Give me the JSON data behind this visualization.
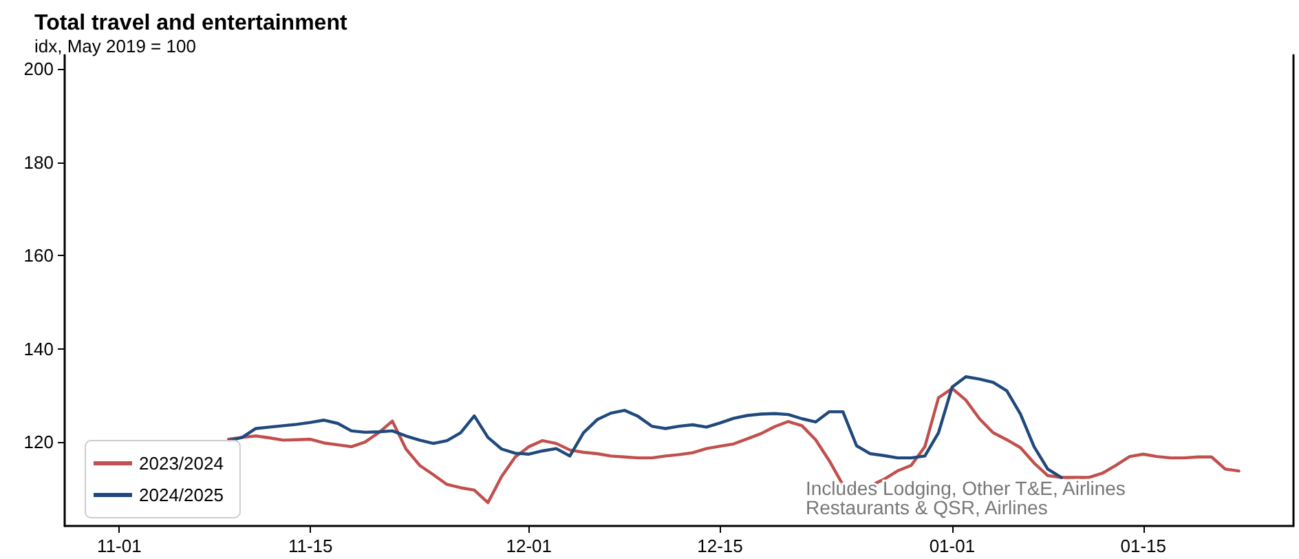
{
  "chart_data": {
    "type": "line",
    "title": "Total travel and entertainment",
    "subtitle": "idx, May 2019 = 100",
    "annotations": [
      "Includes Lodging, Other T&E, Airlines",
      "Restaurants & QSR, Airlines"
    ],
    "x": [
      "2024-11-09",
      "2024-11-10",
      "2024-11-11",
      "2024-11-12",
      "2024-11-13",
      "2024-11-14",
      "2024-11-15",
      "2024-11-16",
      "2024-11-17",
      "2024-11-18",
      "2024-11-19",
      "2024-11-20",
      "2024-11-21",
      "2024-11-22",
      "2024-11-23",
      "2024-11-24",
      "2024-11-25",
      "2024-11-26",
      "2024-11-27",
      "2024-11-28",
      "2024-11-29",
      "2024-11-30",
      "2024-12-01",
      "2024-12-02",
      "2024-12-03",
      "2024-12-04",
      "2024-12-05",
      "2024-12-06",
      "2024-12-07",
      "2024-12-08",
      "2024-12-09",
      "2024-12-10",
      "2024-12-11",
      "2024-12-12",
      "2024-12-13",
      "2024-12-14",
      "2024-12-15",
      "2024-12-16",
      "2024-12-17",
      "2024-12-18",
      "2024-12-19",
      "2024-12-20",
      "2024-12-21",
      "2024-12-22",
      "2024-12-23",
      "2024-12-24",
      "2024-12-25",
      "2024-12-26",
      "2024-12-27",
      "2024-12-28",
      "2024-12-29",
      "2024-12-30",
      "2024-12-31",
      "2025-01-01",
      "2025-01-02",
      "2025-01-03",
      "2025-01-04",
      "2025-01-05",
      "2025-01-06",
      "2025-01-07",
      "2025-01-08",
      "2025-01-09",
      "2025-01-10",
      "2025-01-11",
      "2025-01-12",
      "2025-01-13",
      "2025-01-14",
      "2025-01-15",
      "2025-01-16",
      "2025-01-17",
      "2025-01-18",
      "2025-01-19",
      "2025-01-20",
      "2025-01-21",
      "2025-01-22"
    ],
    "series": [
      {
        "name": "2023/2024",
        "color": "#c0504d",
        "values": [
          120.6,
          121,
          121.3,
          120.9,
          120.4,
          120.5,
          120.6,
          119.8,
          119.4,
          119,
          120,
          122,
          124.5,
          118.5,
          115,
          113,
          110.9,
          110.2,
          109.7,
          107,
          112.6,
          116.8,
          119,
          120.3,
          119.7,
          118.3,
          117.8,
          117.5,
          117,
          116.8,
          116.6,
          116.6,
          117,
          117.3,
          117.7,
          118.6,
          119.1,
          119.6,
          120.7,
          121.8,
          123.3,
          124.4,
          123.5,
          120.5,
          116,
          110.8,
          109.3,
          110.6,
          112,
          113.8,
          115,
          119,
          129.5,
          131.5,
          129,
          125,
          122,
          120.5,
          118.8,
          115.5,
          112.8,
          112.4,
          112.4,
          112.4,
          113.3,
          115,
          116.9,
          117.4,
          116.9,
          116.6,
          116.6,
          116.8,
          116.8,
          114.2,
          113.8
        ]
      },
      {
        "name": "2024/2025",
        "color": "#1f497d",
        "values": [
          120.3,
          121,
          122.9,
          123.2,
          123.5,
          123.8,
          124.2,
          124.7,
          124,
          122.4,
          122.1,
          122.2,
          122.4,
          121.3,
          120.4,
          119.7,
          120.3,
          122,
          125.6,
          121,
          118.5,
          117.6,
          117.4,
          118.1,
          118.6,
          117,
          122,
          124.8,
          126.2,
          126.8,
          125.5,
          123.4,
          122.9,
          123.4,
          123.7,
          123.2,
          124.1,
          125.1,
          125.7,
          126,
          126.1,
          125.9,
          125,
          124.3,
          126.5,
          126.5,
          119.2,
          117.5,
          117.1,
          116.6,
          116.6,
          117,
          122,
          131.8,
          134,
          133.5,
          132.8,
          131,
          126,
          119,
          114.2,
          112.4,
          null,
          null,
          null,
          null,
          null,
          null,
          null,
          null,
          null,
          null,
          null,
          null,
          null
        ]
      }
    ],
    "xlim": [
      "2024-10-28",
      "2025-01-26"
    ],
    "xticks": [
      {
        "value": "2024-11-01",
        "label": "11-01"
      },
      {
        "value": "2024-11-15",
        "label": "11-15"
      },
      {
        "value": "2024-12-01",
        "label": "12-01"
      },
      {
        "value": "2024-12-15",
        "label": "12-15"
      },
      {
        "value": "2025-01-01",
        "label": "01-01"
      },
      {
        "value": "2025-01-15",
        "label": "01-15"
      }
    ],
    "ylim": [
      102,
      203
    ],
    "yticks": [
      120,
      140,
      160,
      180,
      200
    ],
    "grid": false,
    "legend": "bottom left",
    "marker": "none",
    "line_style": "solid"
  }
}
